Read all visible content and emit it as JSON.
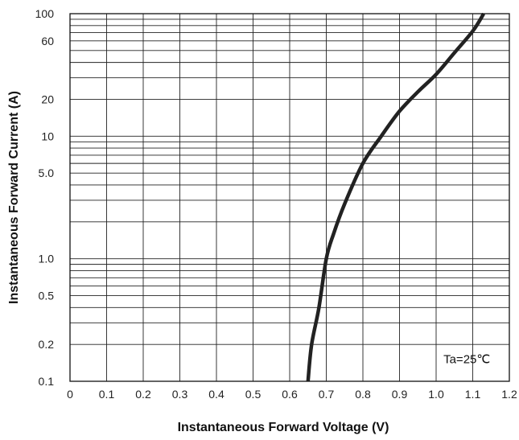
{
  "chart_data": {
    "type": "line",
    "title": "",
    "xlabel": "Instantaneous Forward Voltage (V)",
    "ylabel": "Instantaneous Forward Current (A)",
    "xlim": [
      0,
      1.2
    ],
    "ylim": [
      0.1,
      100
    ],
    "y_scale": "log",
    "grid": true,
    "legend": "none",
    "x_ticks": [
      "0",
      "0.1",
      "0.2",
      "0.3",
      "0.4",
      "0.5",
      "0.6",
      "0.7",
      "0.8",
      "0.9",
      "1.0",
      "1.1",
      "1.2"
    ],
    "y_ticks": [
      {
        "value": 0.1,
        "label": "0.1"
      },
      {
        "value": 0.2,
        "label": "0.2"
      },
      {
        "value": 0.5,
        "label": "0.5"
      },
      {
        "value": 1,
        "label": "1.0"
      },
      {
        "value": 5,
        "label": "5.0"
      },
      {
        "value": 10,
        "label": "10"
      },
      {
        "value": 20,
        "label": "20"
      },
      {
        "value": 60,
        "label": "60"
      },
      {
        "value": 100,
        "label": "100"
      }
    ],
    "series": [
      {
        "color": "#222222",
        "points": [
          [
            0.65,
            0.1
          ],
          [
            0.66,
            0.2
          ],
          [
            0.68,
            0.4
          ],
          [
            0.7,
            1.0
          ],
          [
            0.72,
            1.6
          ],
          [
            0.75,
            2.8
          ],
          [
            0.8,
            6.0
          ],
          [
            0.85,
            10.0
          ],
          [
            0.9,
            16.0
          ],
          [
            0.95,
            23.0
          ],
          [
            1.0,
            32.0
          ],
          [
            1.05,
            48.0
          ],
          [
            1.1,
            72.0
          ],
          [
            1.13,
            100.0
          ]
        ]
      }
    ],
    "annotation": "Ta=25℃"
  }
}
